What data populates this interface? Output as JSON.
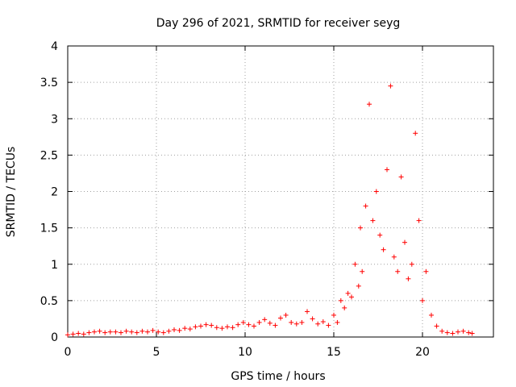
{
  "chart_data": {
    "type": "scatter",
    "title": "Day 296 of 2021, SRMTID for receiver seyg",
    "xlabel": "GPS time / hours",
    "ylabel": "SRMTID / TECUs",
    "xlim": [
      0,
      24
    ],
    "ylim": [
      0,
      4
    ],
    "xticks": [
      0,
      5,
      10,
      15,
      20
    ],
    "xtick_labels": [
      "0",
      "5",
      "10",
      "15",
      "20"
    ],
    "yticks": [
      0,
      0.5,
      1,
      1.5,
      2,
      2.5,
      3,
      3.5,
      4
    ],
    "ytick_labels": [
      "0",
      "0.5",
      "1",
      "1.5",
      "2",
      "2.5",
      "3",
      "3.5",
      "4"
    ],
    "grid": true,
    "marker": "+",
    "color": "#ff0000",
    "series": [
      {
        "name": "SRMTID",
        "x": [
          0.0,
          0.3,
          0.6,
          0.9,
          1.2,
          1.5,
          1.8,
          2.1,
          2.4,
          2.7,
          3.0,
          3.3,
          3.6,
          3.9,
          4.2,
          4.5,
          4.8,
          5.1,
          5.4,
          5.7,
          6.0,
          6.3,
          6.6,
          6.9,
          7.2,
          7.5,
          7.8,
          8.1,
          8.4,
          8.7,
          9.0,
          9.3,
          9.6,
          9.9,
          10.2,
          10.5,
          10.8,
          11.1,
          11.4,
          11.7,
          12.0,
          12.3,
          12.6,
          12.9,
          13.2,
          13.5,
          13.8,
          14.1,
          14.4,
          14.7,
          15.0,
          15.2,
          15.4,
          15.6,
          15.8,
          16.0,
          16.2,
          16.4,
          16.5,
          16.6,
          16.8,
          17.0,
          17.2,
          17.4,
          17.6,
          17.8,
          18.0,
          18.2,
          18.4,
          18.6,
          18.8,
          19.0,
          19.2,
          19.4,
          19.6,
          19.8,
          20.0,
          20.2,
          20.5,
          20.8,
          21.1,
          21.4,
          21.7,
          22.0,
          22.3,
          22.6,
          22.8
        ],
        "y": [
          0.03,
          0.04,
          0.05,
          0.04,
          0.06,
          0.07,
          0.08,
          0.06,
          0.07,
          0.07,
          0.06,
          0.08,
          0.07,
          0.06,
          0.08,
          0.07,
          0.09,
          0.07,
          0.06,
          0.08,
          0.1,
          0.09,
          0.12,
          0.11,
          0.14,
          0.15,
          0.17,
          0.16,
          0.13,
          0.12,
          0.14,
          0.13,
          0.17,
          0.2,
          0.17,
          0.15,
          0.2,
          0.24,
          0.19,
          0.16,
          0.26,
          0.3,
          0.2,
          0.18,
          0.2,
          0.35,
          0.25,
          0.18,
          0.21,
          0.16,
          0.3,
          0.2,
          0.5,
          0.4,
          0.6,
          0.55,
          1.0,
          0.7,
          1.5,
          0.9,
          1.8,
          3.2,
          1.6,
          2.0,
          1.4,
          1.2,
          2.3,
          3.45,
          1.1,
          0.9,
          2.2,
          1.3,
          0.8,
          1.0,
          2.8,
          1.6,
          0.5,
          0.9,
          0.3,
          0.15,
          0.08,
          0.06,
          0.05,
          0.07,
          0.08,
          0.06,
          0.05
        ]
      }
    ]
  }
}
